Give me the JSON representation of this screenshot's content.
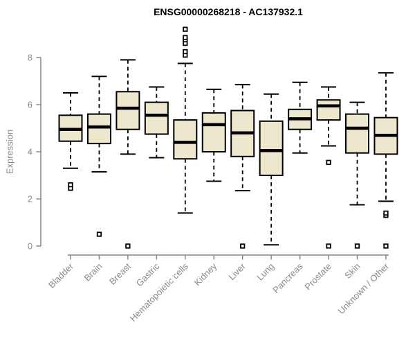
{
  "chart_data": {
    "type": "boxplot",
    "title": "ENSG00000268218 - AC137932.1",
    "ylabel": "Expression",
    "xlabel": "",
    "ylim": [
      0,
      9.4
    ],
    "yticks": [
      0,
      2,
      4,
      6,
      8
    ],
    "grid": false,
    "legend": "none",
    "categories": [
      "Bladder",
      "Brain",
      "Breast",
      "Gastric",
      "Hematopoietic cells",
      "Kidney",
      "Liver",
      "Lung",
      "Pancreas",
      "Prostate",
      "Skin",
      "Unknown / Other"
    ],
    "series": [
      {
        "name": "Bladder",
        "whisker_low": 3.3,
        "q1": 4.45,
        "median": 4.95,
        "q3": 5.55,
        "whisker_high": 6.5,
        "outliers": [
          2.45,
          2.6
        ]
      },
      {
        "name": "Brain",
        "whisker_low": 3.15,
        "q1": 4.35,
        "median": 5.05,
        "q3": 5.6,
        "whisker_high": 7.2,
        "outliers": [
          0.5
        ]
      },
      {
        "name": "Breast",
        "whisker_low": 3.9,
        "q1": 4.95,
        "median": 5.85,
        "q3": 6.55,
        "whisker_high": 7.9,
        "outliers": [
          0.0
        ]
      },
      {
        "name": "Gastric",
        "whisker_low": 3.75,
        "q1": 4.75,
        "median": 5.55,
        "q3": 6.1,
        "whisker_high": 6.75,
        "outliers": []
      },
      {
        "name": "Hematopoietic cells",
        "whisker_low": 1.4,
        "q1": 3.7,
        "median": 4.4,
        "q3": 5.35,
        "whisker_high": 7.75,
        "outliers": [
          8.1,
          8.25,
          8.6,
          8.75,
          8.85,
          9.2
        ]
      },
      {
        "name": "Kidney",
        "whisker_low": 2.75,
        "q1": 4.0,
        "median": 5.15,
        "q3": 5.65,
        "whisker_high": 6.65,
        "outliers": []
      },
      {
        "name": "Liver",
        "whisker_low": 2.35,
        "q1": 3.8,
        "median": 4.8,
        "q3": 5.75,
        "whisker_high": 6.85,
        "outliers": [
          0.0
        ]
      },
      {
        "name": "Lung",
        "whisker_low": 0.05,
        "q1": 3.0,
        "median": 4.05,
        "q3": 5.3,
        "whisker_high": 6.45,
        "outliers": []
      },
      {
        "name": "Pancreas",
        "whisker_low": 3.95,
        "q1": 4.95,
        "median": 5.4,
        "q3": 5.8,
        "whisker_high": 6.95,
        "outliers": []
      },
      {
        "name": "Prostate",
        "whisker_low": 4.25,
        "q1": 5.35,
        "median": 5.95,
        "q3": 6.2,
        "whisker_high": 6.75,
        "outliers": [
          3.55,
          0.0
        ]
      },
      {
        "name": "Skin",
        "whisker_low": 1.75,
        "q1": 3.95,
        "median": 5.0,
        "q3": 5.6,
        "whisker_high": 6.1,
        "outliers": [
          0.0
        ]
      },
      {
        "name": "Unknown / Other",
        "whisker_low": 1.9,
        "q1": 3.9,
        "median": 4.7,
        "q3": 5.45,
        "whisker_high": 7.35,
        "outliers": [
          1.3,
          1.4,
          0.0
        ]
      }
    ],
    "colors": {
      "box_fill": "#EDE7CE",
      "box_border": "#000000",
      "median": "#000000",
      "whisker": "#000000",
      "axis": "#878787",
      "tick_label": "#8a8a8a",
      "title": "#000000",
      "background": "#ffffff"
    }
  }
}
